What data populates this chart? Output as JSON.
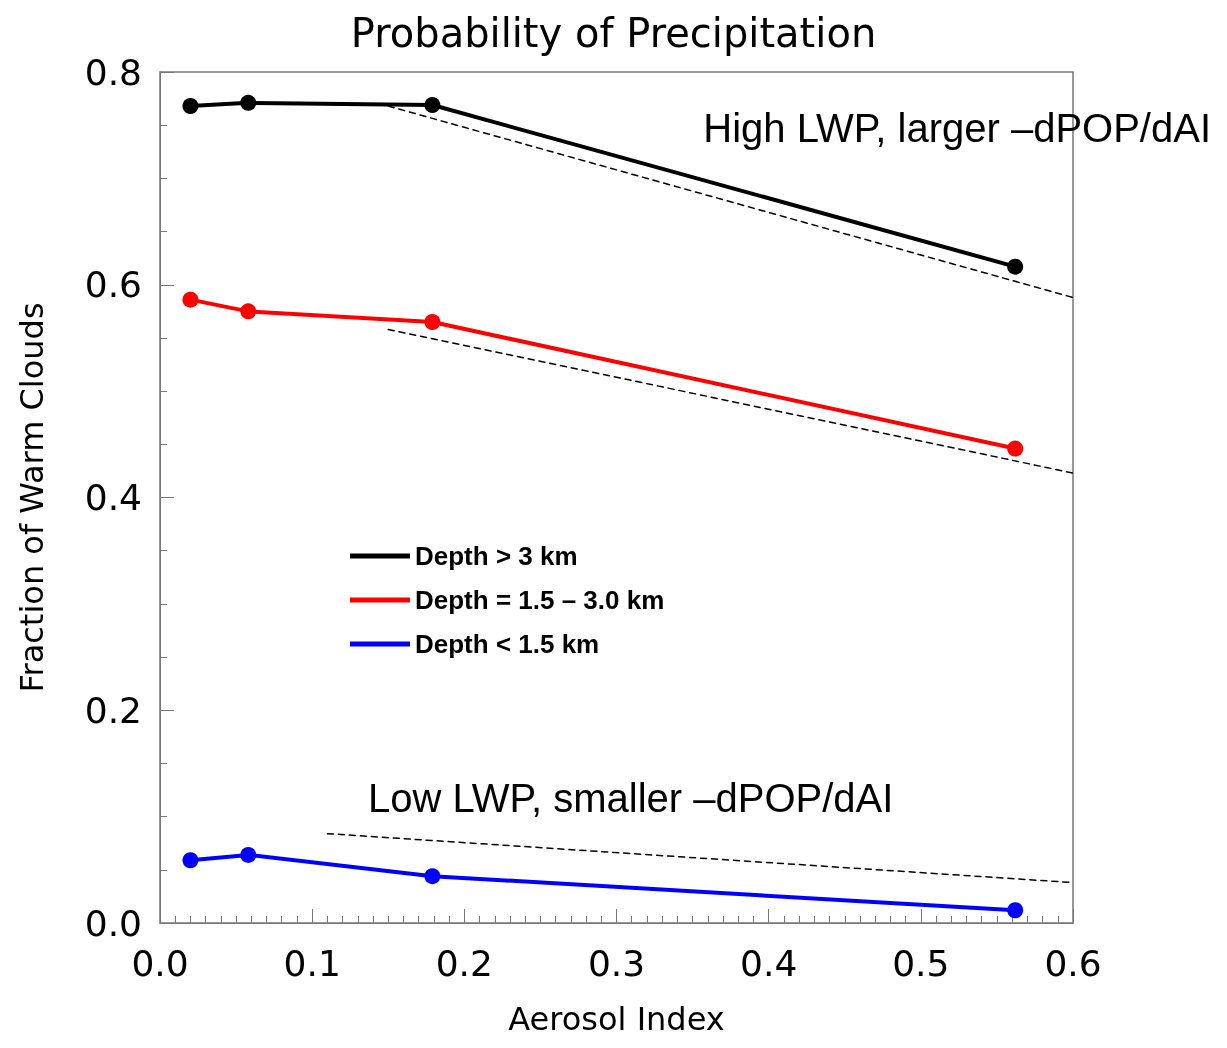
{
  "chart_data": {
    "type": "line",
    "title": "Probability of Precipitation",
    "xlabel": "Aerosol Index",
    "ylabel": "Fraction of Warm Clouds",
    "x": [
      0.02,
      0.058,
      0.179,
      0.562
    ],
    "series": [
      {
        "name": "Depth > 3 km",
        "color": "#000000",
        "values": [
          0.768,
          0.771,
          0.769,
          0.617
        ]
      },
      {
        "name": "Depth = 1.5 – 3.0 km",
        "color": "#ff0000",
        "values": [
          0.586,
          0.575,
          0.565,
          0.446
        ]
      },
      {
        "name": "Depth < 1.5 km",
        "color": "#0000ff",
        "values": [
          0.059,
          0.064,
          0.044,
          0.012
        ]
      },
      {
        "color": "#000000",
        "x": [
          0.15,
          0.6
        ],
        "values": [
          0.768,
          0.588
        ],
        "line_style": "dashed",
        "marker": "none"
      },
      {
        "color": "#000000",
        "x": [
          0.15,
          0.6
        ],
        "values": [
          0.558,
          0.423
        ],
        "line_style": "dashed",
        "marker": "none"
      },
      {
        "color": "#000000",
        "x": [
          0.11,
          0.6
        ],
        "values": [
          0.084,
          0.038
        ],
        "line_style": "dashed",
        "marker": "none"
      }
    ],
    "xlim": [
      0,
      0.6
    ],
    "xticks": [
      {
        "value": 0,
        "label": "0.0"
      },
      0.1,
      0.2,
      0.3,
      0.4,
      0.5,
      0.6
    ],
    "ylim": [
      0,
      0.8
    ],
    "yticks": [
      {
        "value": 0,
        "label": "0.0"
      },
      0.2,
      0.4,
      0.6,
      0.8
    ],
    "annotations": [
      "High LWP, larger –dPOP/dAI",
      "Low LWP, smaller –dPOP/dAI"
    ],
    "grid": false,
    "legend": "left",
    "marker": "circle",
    "line_style": "solid"
  }
}
